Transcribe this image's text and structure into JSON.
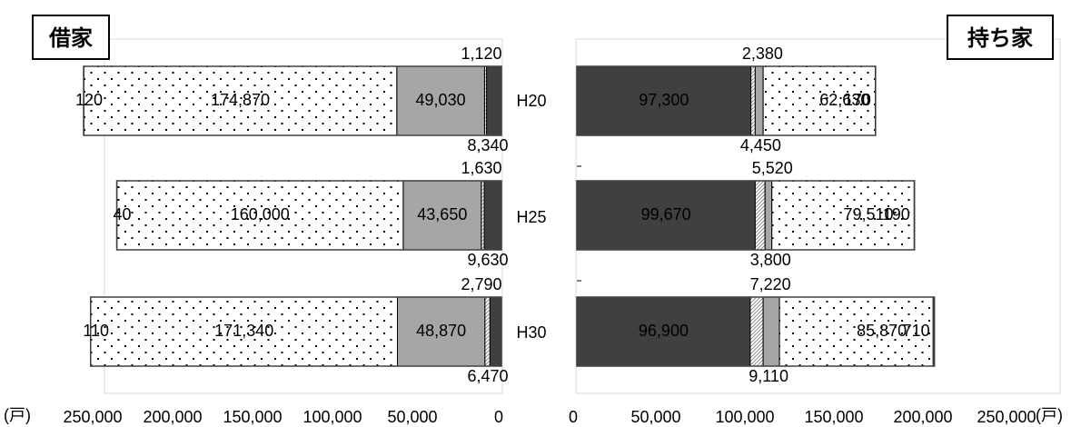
{
  "chart_data": {
    "type": "bar",
    "orientation": "horizontal",
    "layout": "back-to-back stacked bars",
    "categories": [
      "H20",
      "H25",
      "H30"
    ],
    "x_range": [
      0,
      250000
    ],
    "x_ticks": [
      "250,000",
      "200,000",
      "150,000",
      "100,000",
      "50,000",
      "0"
    ],
    "x_ticks_right": [
      "0",
      "50,000",
      "100,000",
      "150,000",
      "200,000",
      "250,000"
    ],
    "unit": "(戸)",
    "legend": "none",
    "grid": false,
    "panels": [
      {
        "title": "借家",
        "direction": "leftward",
        "series": [
          {
            "color": "#404040",
            "pattern": "solid",
            "values": [
              8340,
              9630,
              6470
            ]
          },
          {
            "color": "#ffffff",
            "pattern": "diagonal",
            "values": [
              1120,
              1630,
              2790
            ]
          },
          {
            "color": "#a6a6a6",
            "pattern": "solid",
            "values": [
              49030,
              43650,
              48870
            ]
          },
          {
            "color": "#ffffff",
            "pattern": "dots",
            "values": [
              174870,
              160000,
              171340
            ]
          },
          {
            "color": "#ffffff",
            "pattern": "none",
            "values": [
              120,
              40,
              110
            ]
          }
        ],
        "labels": [
          [
            "8,340",
            "9,630",
            "6,470"
          ],
          [
            "1,120",
            "1,630",
            "2,790"
          ],
          [
            "49,030",
            "43,650",
            "48,870"
          ],
          [
            "174,870",
            "160,000",
            "171,340"
          ],
          [
            "120",
            "40",
            "110"
          ]
        ]
      },
      {
        "title": "持ち家",
        "direction": "rightward",
        "series": [
          {
            "color": "#404040",
            "pattern": "solid",
            "values": [
              97300,
              99670,
              96900
            ]
          },
          {
            "color": "#ffffff",
            "pattern": "diagonal",
            "values": [
              2380,
              5520,
              7220
            ]
          },
          {
            "color": "#a6a6a6",
            "pattern": "solid",
            "values": [
              4450,
              3800,
              9110
            ]
          },
          {
            "color": "#ffffff",
            "pattern": "dots",
            "values": [
              62630,
              79510,
              85870
            ]
          },
          {
            "color": "#ffffff",
            "pattern": "none",
            "values": [
              170,
              190,
              710
            ]
          }
        ],
        "labels": [
          [
            "97,300",
            "99,670",
            "96,900"
          ],
          [
            "2,380",
            "5,520",
            "7,220"
          ],
          [
            "4,450",
            "3,800",
            "9,110"
          ],
          [
            "62,630",
            "79,510",
            "85,870"
          ],
          [
            "170",
            "190",
            "710"
          ]
        ]
      }
    ]
  }
}
